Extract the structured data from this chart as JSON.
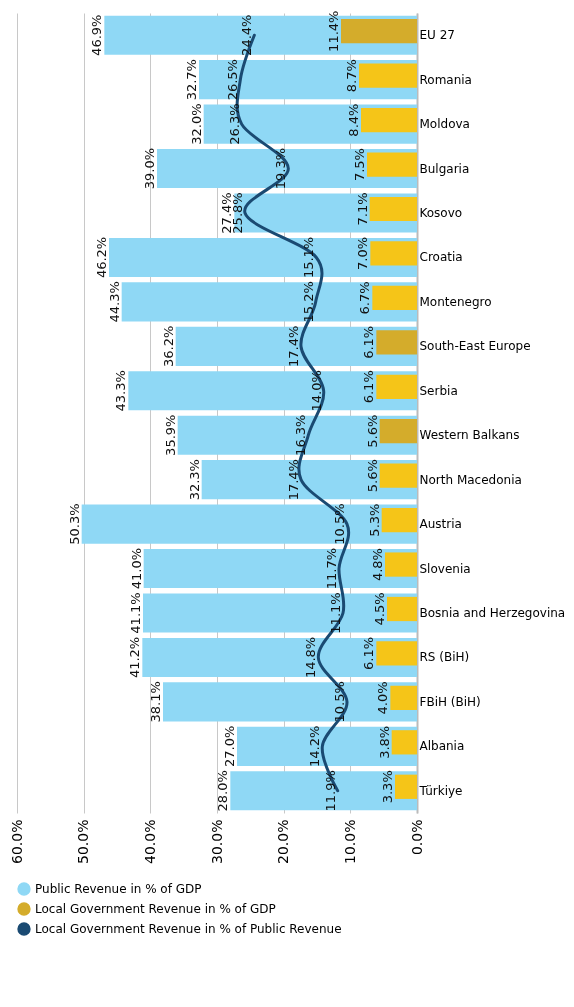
{
  "chart_data": {
    "type": "bar",
    "orientation": "horizontal",
    "categories": [
      "EU 27",
      "Romania",
      "Moldova",
      "Bulgaria",
      "Kosovo",
      "Croatia",
      "Montenegro",
      "South-East Europe",
      "Serbia",
      "Western Balkans",
      "North Macedonia",
      "Austria",
      "Slovenia",
      "Bosnia and Herzegovina",
      "RS (BiH)",
      "FBiH (BiH)",
      "Albania",
      "Türkiye"
    ],
    "series": [
      {
        "name": "Public Revenue in % of GDP",
        "color": "#8fd8f5",
        "values": [
          46.9,
          32.7,
          32.0,
          39.0,
          27.4,
          46.2,
          44.3,
          36.2,
          43.3,
          35.9,
          32.3,
          50.3,
          41.0,
          41.1,
          41.2,
          38.1,
          27.0,
          28.0
        ],
        "value_labels": [
          "46.9%",
          "32.7%",
          "32.0%",
          "39.0%",
          "27.4%",
          "46.2%",
          "44.3%",
          "36.2%",
          "43.3%",
          "35.9%",
          "32.3%",
          "50.3%",
          "41.0%",
          "41.1%",
          "41.2%",
          "38.1%",
          "27.0%",
          "28.0%"
        ]
      },
      {
        "name": "Local Government Revenue in % of GDP",
        "color": "#d4ac2b",
        "colors": [
          "#d4ac2b",
          "#f5c518",
          "#f5c518",
          "#f5c518",
          "#f5c518",
          "#f5c518",
          "#f5c518",
          "#d4ac2b",
          "#f5c518",
          "#d4ac2b",
          "#f5c518",
          "#f5c518",
          "#f5c518",
          "#f5c518",
          "#f5c518",
          "#f5c518",
          "#f5c518",
          "#f5c518"
        ],
        "values": [
          11.4,
          8.7,
          8.4,
          7.5,
          7.1,
          7.0,
          6.7,
          6.1,
          6.1,
          5.6,
          5.6,
          5.3,
          4.8,
          4.5,
          6.1,
          4.0,
          3.8,
          3.3
        ],
        "value_labels": [
          "11.4%",
          "8.7%",
          "8.4%",
          "7.5%",
          "7.1%",
          "7.0%",
          "6.7%",
          "6.1%",
          "6.1%",
          "5.6%",
          "5.6%",
          "5.3%",
          "4.8%",
          "4.5%",
          "6.1%",
          "4.0%",
          "3.8%",
          "3.3%"
        ]
      },
      {
        "name": "Local Government Revenue in % of Public Revenue",
        "type": "line",
        "color": "#1a4a72",
        "values": [
          24.4,
          26.5,
          26.3,
          19.3,
          25.8,
          15.1,
          15.2,
          17.4,
          14.0,
          16.3,
          17.4,
          10.5,
          11.7,
          11.1,
          14.8,
          10.5,
          14.2,
          11.9
        ],
        "value_labels": [
          "24.4%",
          "26.5%",
          "26.3%",
          "19.3%",
          "25.8%",
          "15.1%",
          "15.2%",
          "17.4%",
          "14.0%",
          "16.3%",
          "17.4%",
          "10.5%",
          "11.7%",
          "11.1%",
          "14.8%",
          "10.5%",
          "14.2%",
          "11.9%"
        ]
      }
    ],
    "xlim": [
      60,
      0
    ],
    "xticks": [
      {
        "value": 60,
        "label": "60.0%"
      },
      {
        "value": 50,
        "label": "50.0%"
      },
      {
        "value": 40,
        "label": "40.0%"
      },
      {
        "value": 30,
        "label": "30.0%"
      },
      {
        "value": 20,
        "label": "20.0%"
      },
      {
        "value": 10,
        "label": "10.0%"
      },
      {
        "value": 0,
        "label": "0.0%"
      }
    ],
    "grid": "x",
    "legend": "bottom"
  }
}
